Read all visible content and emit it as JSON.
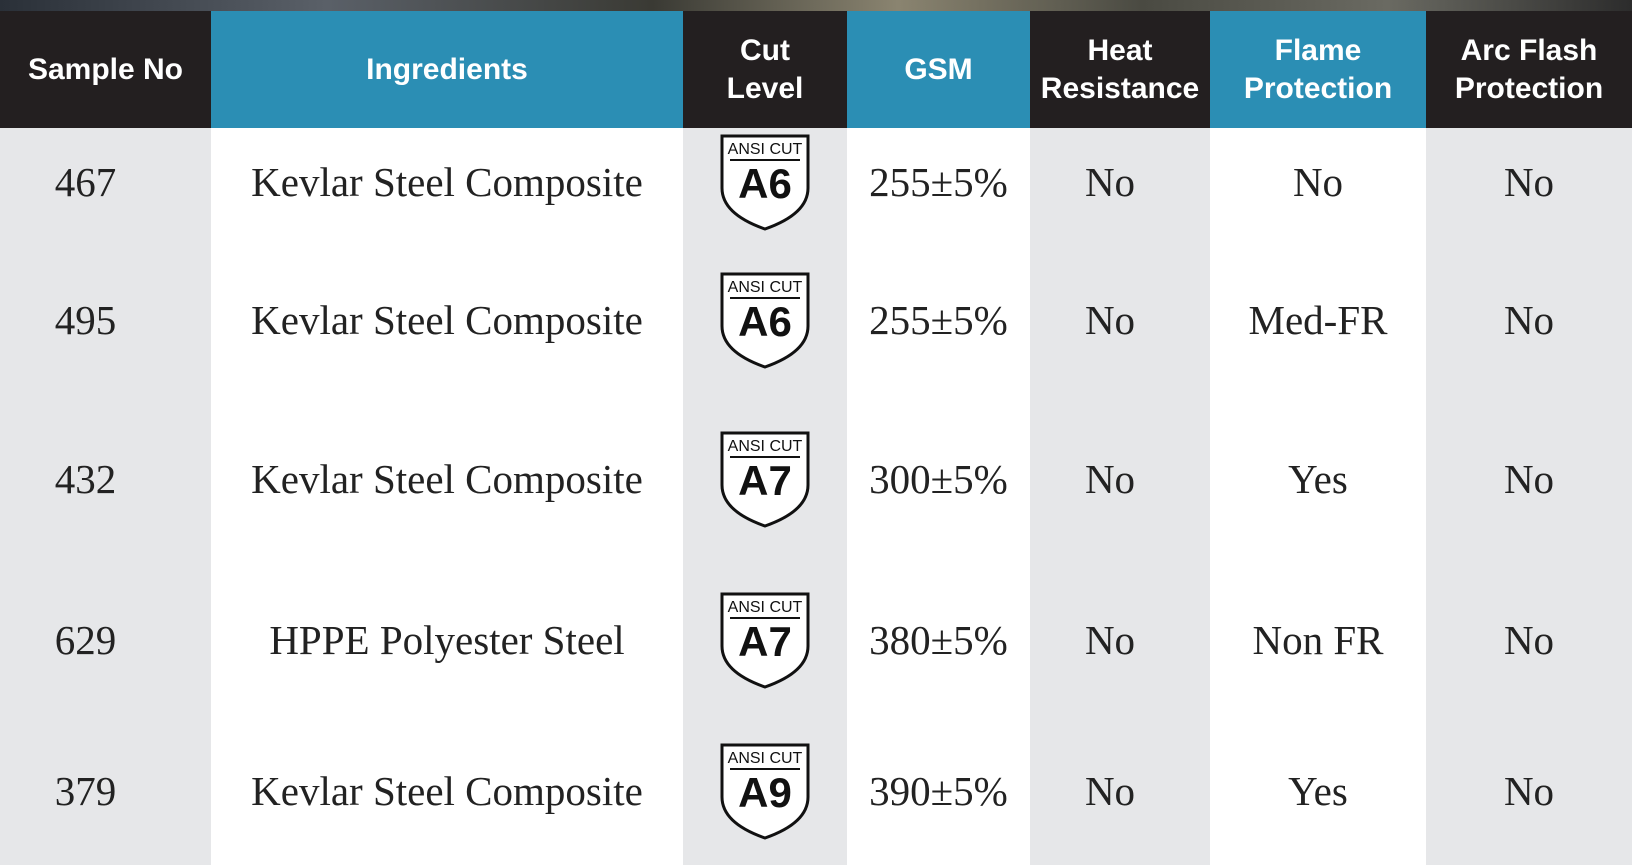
{
  "table": {
    "header": [
      [
        "Sample No"
      ],
      [
        "Ingredients"
      ],
      [
        "Cut",
        "Level"
      ],
      [
        "GSM"
      ],
      [
        "Heat",
        "Resistance"
      ],
      [
        "Flame",
        "Protection"
      ],
      [
        "Arc Flash",
        "Protection"
      ]
    ],
    "rows": [
      {
        "sample": "467",
        "ingredients": "Kevlar Steel Composite",
        "badge_top": "ANSI CUT",
        "badge_level": "A6",
        "gsm": "255±5%",
        "heat": "No",
        "flame": "No",
        "arc": "No"
      },
      {
        "sample": "495",
        "ingredients": "Kevlar Steel Composite",
        "badge_top": "ANSI CUT",
        "badge_level": "A6",
        "gsm": "255±5%",
        "heat": "No",
        "flame": "Med-FR",
        "arc": "No"
      },
      {
        "sample": "432",
        "ingredients": "Kevlar Steel Composite",
        "badge_top": "ANSI CUT",
        "badge_level": "A7",
        "gsm": "300±5%",
        "heat": "No",
        "flame": "Yes",
        "arc": "No"
      },
      {
        "sample": "629",
        "ingredients": "HPPE Polyester Steel",
        "badge_top": "ANSI CUT",
        "badge_level": "A7",
        "gsm": "380±5%",
        "heat": "No",
        "flame": "Non FR",
        "arc": "No"
      },
      {
        "sample": "379",
        "ingredients": "Kevlar Steel Composite",
        "badge_top": "ANSI CUT",
        "badge_level": "A9",
        "gsm": "390±5%",
        "heat": "No",
        "flame": "Yes",
        "arc": "No"
      }
    ]
  }
}
